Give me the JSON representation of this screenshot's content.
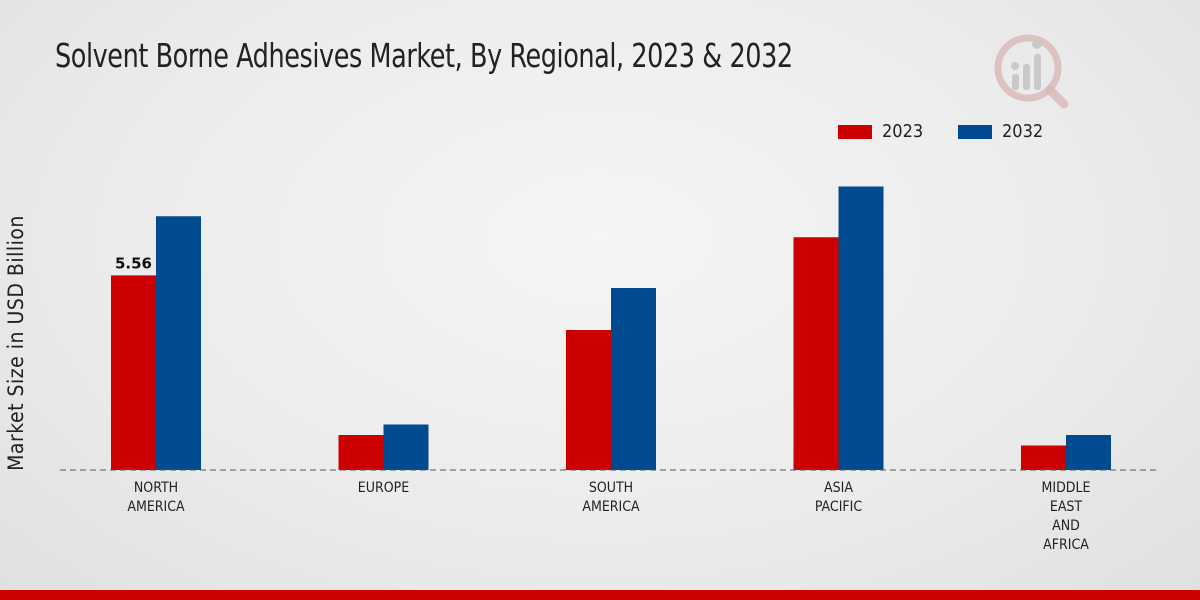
{
  "colors": {
    "series_2023": "#cc0000",
    "series_2032": "#004a8f",
    "footer": "#cc0000"
  },
  "logo": {
    "icon": "bar-chart-magnifier-icon"
  },
  "chart_data": {
    "type": "bar",
    "title": "Solvent Borne Adhesives Market, By Regional, 2023 & 2032",
    "xlabel": "",
    "ylabel": "Market Size in USD Billion",
    "categories": [
      [
        "NORTH",
        "AMERICA"
      ],
      [
        "EUROPE"
      ],
      [
        "SOUTH",
        "AMERICA"
      ],
      [
        "ASIA",
        "PACIFIC"
      ],
      [
        "MIDDLE",
        "EAST",
        "AND",
        "AFRICA"
      ]
    ],
    "series": [
      {
        "name": "2023",
        "values": [
          5.56,
          1.0,
          4.0,
          6.65,
          0.7
        ]
      },
      {
        "name": "2032",
        "values": [
          7.25,
          1.3,
          5.2,
          8.1,
          1.0
        ]
      }
    ],
    "data_labels": [
      {
        "series": 0,
        "index": 0,
        "text": "5.56"
      }
    ],
    "ylim": [
      0,
      10
    ],
    "legend_position": "top-right",
    "grid": false
  }
}
